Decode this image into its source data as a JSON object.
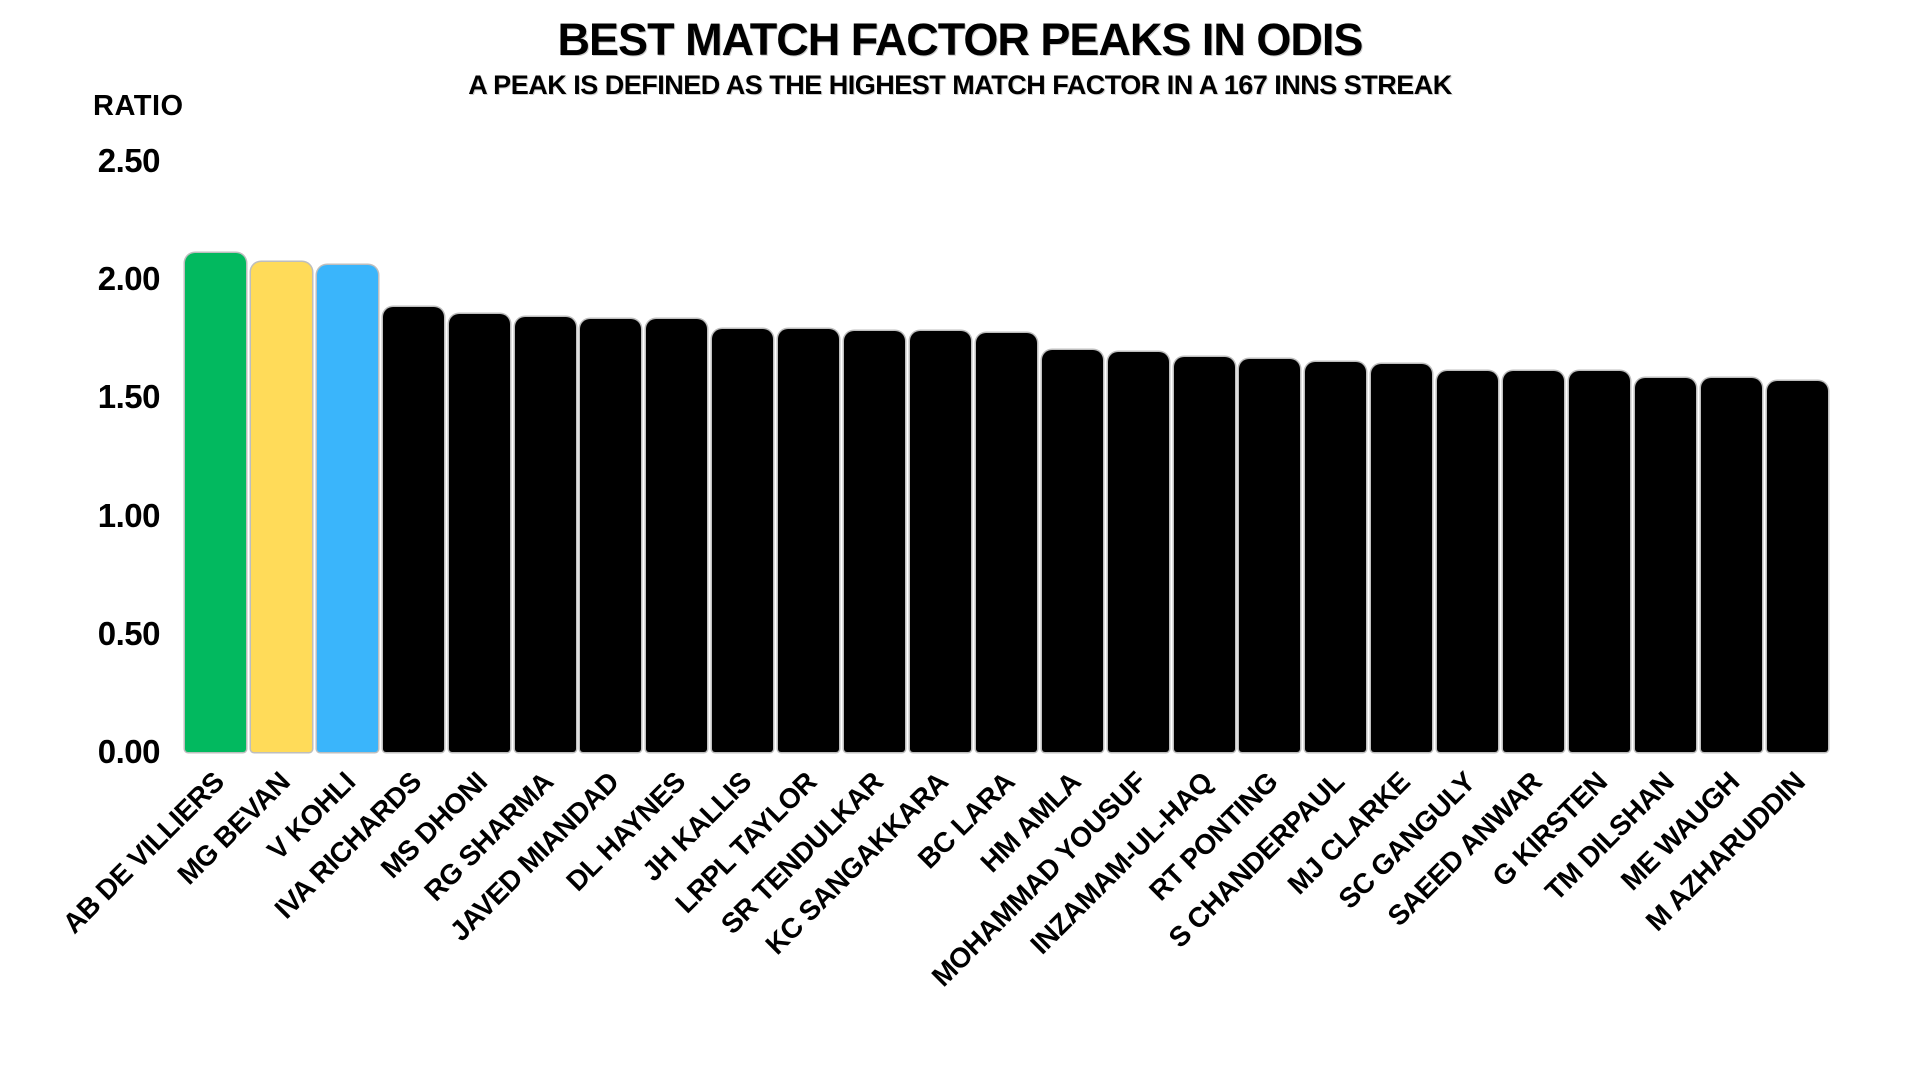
{
  "chart_data": {
    "type": "bar",
    "title": "BEST MATCH FACTOR PEAKS IN ODIS",
    "subtitle": "A PEAK IS DEFINED AS THE HIGHEST MATCH FACTOR IN A 167 INNS STREAK",
    "ylabel": "RATIO",
    "ylim": [
      0.0,
      2.5
    ],
    "grid": false,
    "legend_position": "none",
    "yticks": [
      {
        "label": "0.00",
        "value": 0.0
      },
      {
        "label": "0.50",
        "value": 0.5
      },
      {
        "label": "1.00",
        "value": 1.0
      },
      {
        "label": "1.50",
        "value": 1.5
      },
      {
        "label": "2.00",
        "value": 2.0
      },
      {
        "label": "2.50",
        "value": 2.5
      }
    ],
    "categories": [
      "AB DE VILLIERS",
      "MG BEVAN",
      "V KOHLI",
      "IVA RICHARDS",
      "MS DHONI",
      "RG SHARMA",
      "JAVED MIANDAD",
      "DL HAYNES",
      "JH KALLIS",
      "LRPL TAYLOR",
      "SR TENDULKAR",
      "KC SANGAKKARA",
      "BC LARA",
      "HM AMLA",
      "MOHAMMAD YOUSUF",
      "INZAMAM-UL-HAQ",
      "RT PONTING",
      "S CHANDERPAUL",
      "MJ CLARKE",
      "SC GANGULY",
      "SAEED ANWAR",
      "G KIRSTEN",
      "TM DILSHAN",
      "ME WAUGH",
      "M AZHARUDDIN"
    ],
    "values": [
      2.11,
      2.07,
      2.06,
      1.88,
      1.85,
      1.84,
      1.83,
      1.83,
      1.79,
      1.79,
      1.78,
      1.78,
      1.77,
      1.7,
      1.69,
      1.67,
      1.66,
      1.65,
      1.64,
      1.61,
      1.61,
      1.61,
      1.58,
      1.58,
      1.57
    ],
    "highlight_colors": {
      "AB DE VILLIERS": "#02b95f",
      "MG BEVAN": "#ffdb59",
      "V KOHLI": "#3ab5fb"
    },
    "default_bar_color": "#000000",
    "background_color": "#ffffff"
  }
}
